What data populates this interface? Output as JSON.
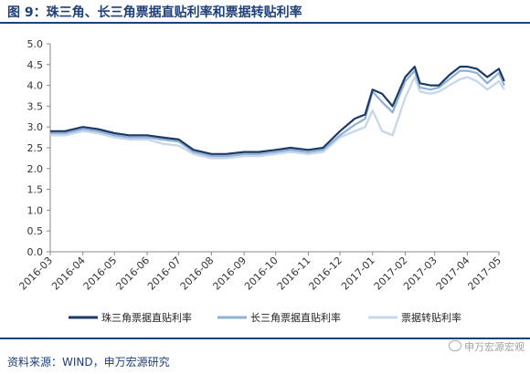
{
  "header": {
    "title": "图 9：珠三角、长三角票据直贴利率和票据转贴利率"
  },
  "footer": {
    "source": "资料来源：WIND，申万宏源研究",
    "watermark": "申万宏源宏观"
  },
  "colors": {
    "brand": "#1f3f78",
    "series": [
      "#1b3a66",
      "#8fb0d4",
      "#c7d8ec"
    ]
  },
  "chart_data": {
    "type": "line",
    "title": "",
    "xlabel": "",
    "ylabel": "",
    "ylim": [
      0.0,
      5.0
    ],
    "yticks": [
      "0.0",
      "0.5",
      "1.0",
      "1.5",
      "2.0",
      "2.5",
      "3.0",
      "3.5",
      "4.0",
      "4.5",
      "5.0"
    ],
    "xlim": [
      "2016-03",
      "2017-05"
    ],
    "xticks": [
      "2016-03",
      "2016-04",
      "2016-05",
      "2016-06",
      "2016-07",
      "2016-08",
      "2016-09",
      "2016-10",
      "2016-11",
      "2016-12",
      "2017-01",
      "2017-02",
      "2017-03",
      "2017-04",
      "2017-05"
    ],
    "grid": false,
    "legend": "bottom",
    "x": [
      "2016-03-01",
      "2016-03-15",
      "2016-04-01",
      "2016-04-15",
      "2016-05-01",
      "2016-05-15",
      "2016-06-01",
      "2016-06-15",
      "2016-07-01",
      "2016-07-15",
      "2016-08-01",
      "2016-08-15",
      "2016-09-01",
      "2016-09-15",
      "2016-10-01",
      "2016-10-15",
      "2016-11-01",
      "2016-11-15",
      "2016-12-01",
      "2016-12-15",
      "2016-12-25",
      "2017-01-01",
      "2017-01-10",
      "2017-01-20",
      "2017-02-01",
      "2017-02-10",
      "2017-02-15",
      "2017-02-25",
      "2017-03-05",
      "2017-03-15",
      "2017-03-25",
      "2017-04-01",
      "2017-04-10",
      "2017-04-20",
      "2017-05-01",
      "2017-05-06"
    ],
    "series": [
      {
        "name": "珠三角票据直贴利率",
        "values": [
          2.9,
          2.9,
          3.0,
          2.95,
          2.85,
          2.8,
          2.8,
          2.75,
          2.7,
          2.45,
          2.35,
          2.35,
          2.4,
          2.4,
          2.45,
          2.5,
          2.45,
          2.5,
          2.9,
          3.2,
          3.3,
          3.9,
          3.8,
          3.5,
          4.2,
          4.45,
          4.05,
          4.0,
          4.0,
          4.25,
          4.45,
          4.45,
          4.4,
          4.2,
          4.4,
          4.1
        ]
      },
      {
        "name": "长三角票据直贴利率",
        "values": [
          2.85,
          2.85,
          2.95,
          2.9,
          2.8,
          2.75,
          2.75,
          2.7,
          2.65,
          2.4,
          2.3,
          2.3,
          2.35,
          2.35,
          2.4,
          2.45,
          2.4,
          2.45,
          2.8,
          3.05,
          3.2,
          3.85,
          3.6,
          3.35,
          4.1,
          4.35,
          3.95,
          3.9,
          3.95,
          4.15,
          4.35,
          4.35,
          4.3,
          4.05,
          4.3,
          4.0
        ]
      },
      {
        "name": "票据转贴利率",
        "values": [
          2.8,
          2.8,
          2.9,
          2.85,
          2.75,
          2.7,
          2.7,
          2.6,
          2.55,
          2.35,
          2.25,
          2.25,
          2.3,
          2.3,
          2.35,
          2.4,
          2.35,
          2.4,
          2.75,
          2.9,
          3.0,
          3.4,
          2.9,
          2.8,
          3.7,
          4.2,
          3.85,
          3.8,
          3.85,
          4.0,
          4.15,
          4.2,
          4.1,
          3.9,
          4.1,
          3.9
        ]
      }
    ]
  }
}
